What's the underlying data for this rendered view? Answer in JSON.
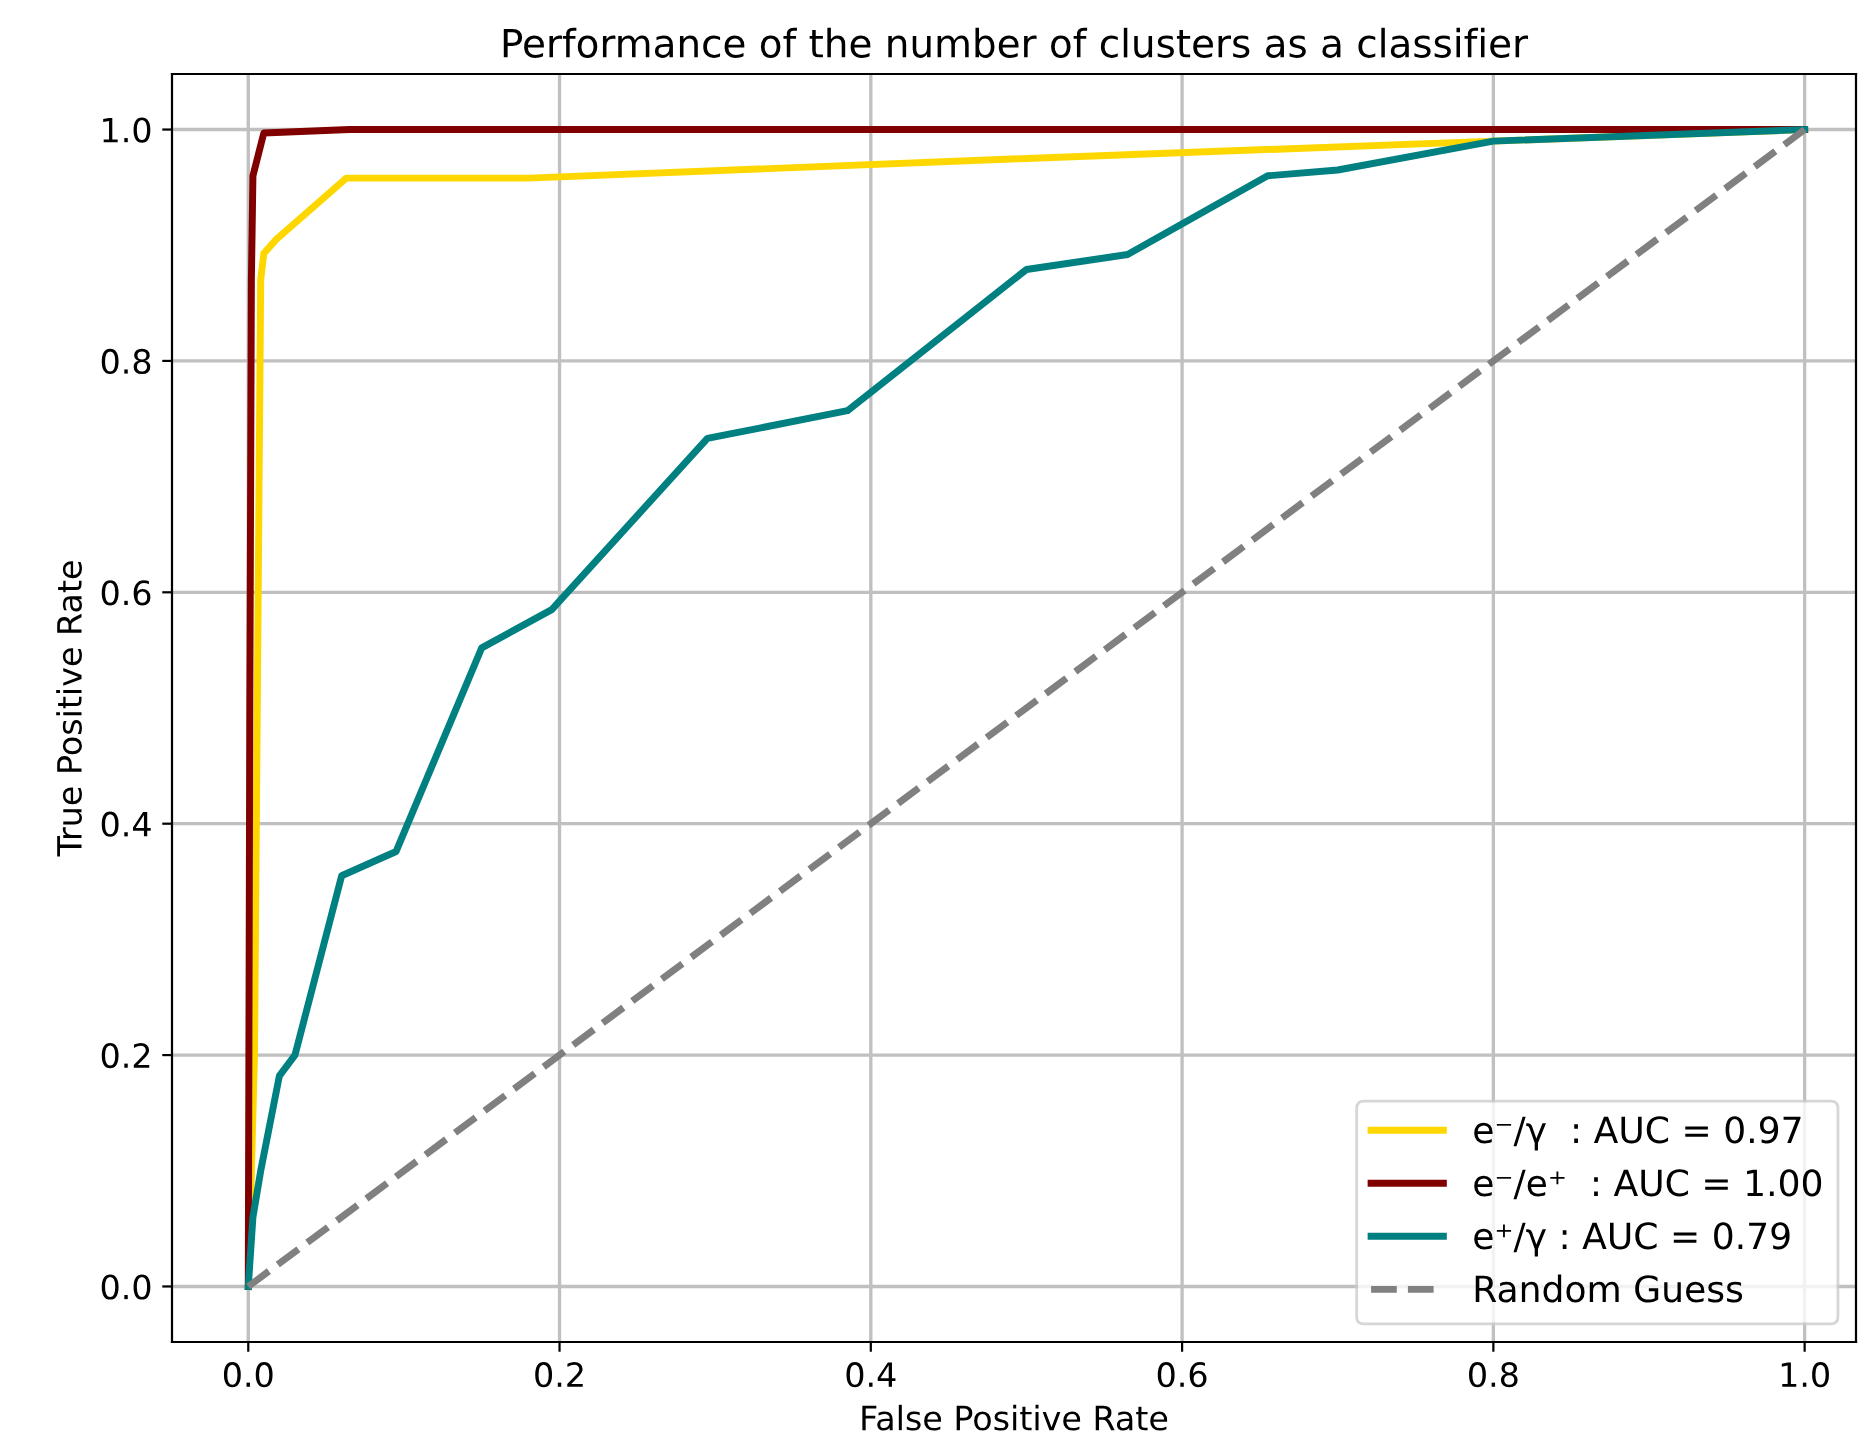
{
  "chart_data": {
    "type": "line",
    "title": "Performance of the number of clusters as a classifier",
    "xlabel": "False Positive Rate",
    "ylabel": "True Positive Rate",
    "xlim": [
      -0.049,
      1.033
    ],
    "ylim": [
      -0.048,
      1.048
    ],
    "xticks": [
      {
        "value": 0,
        "label": "0.0"
      },
      0.2,
      0.4,
      0.6,
      0.8,
      {
        "value": 1,
        "label": "1.0"
      }
    ],
    "yticks": [
      {
        "value": 0,
        "label": "0.0"
      },
      0.2,
      0.4,
      0.6,
      0.8,
      {
        "value": 1,
        "label": "1.0"
      }
    ],
    "grid": true,
    "legend": "bottom right",
    "line_style": "solid",
    "series": [
      {
        "name": "e⁻/γ  : AUC = 0.97",
        "color": "#ffd700",
        "x": [
          0,
          0.004,
          0.008,
          0.01,
          0.018,
          0.063,
          0.18,
          0.5,
          0.8,
          1
        ],
        "values": [
          0,
          0.2,
          0.87,
          0.893,
          0.905,
          0.958,
          0.958,
          0.975,
          0.99,
          1
        ]
      },
      {
        "name": "e⁻/e⁺  : AUC = 1.00",
        "color": "#800000",
        "x": [
          0,
          0.001,
          0.002,
          0.003,
          0.01,
          0.065,
          1
        ],
        "values": [
          0,
          0.5,
          0.87,
          0.96,
          0.997,
          1.0,
          1
        ]
      },
      {
        "name": "e⁺/γ : AUC = 0.79",
        "color": "#008080",
        "x": [
          0,
          0.003,
          0.008,
          0.02,
          0.03,
          0.06,
          0.095,
          0.15,
          0.195,
          0.295,
          0.385,
          0.5,
          0.565,
          0.655,
          0.7,
          0.8,
          1
        ],
        "values": [
          0,
          0.06,
          0.1,
          0.182,
          0.2,
          0.355,
          0.376,
          0.552,
          0.585,
          0.733,
          0.757,
          0.879,
          0.892,
          0.96,
          0.965,
          0.99,
          1
        ]
      },
      {
        "name": "Random Guess",
        "color": "#808080",
        "line_style": "dashed",
        "x": [
          0,
          1
        ],
        "values": [
          0,
          1
        ]
      }
    ]
  }
}
